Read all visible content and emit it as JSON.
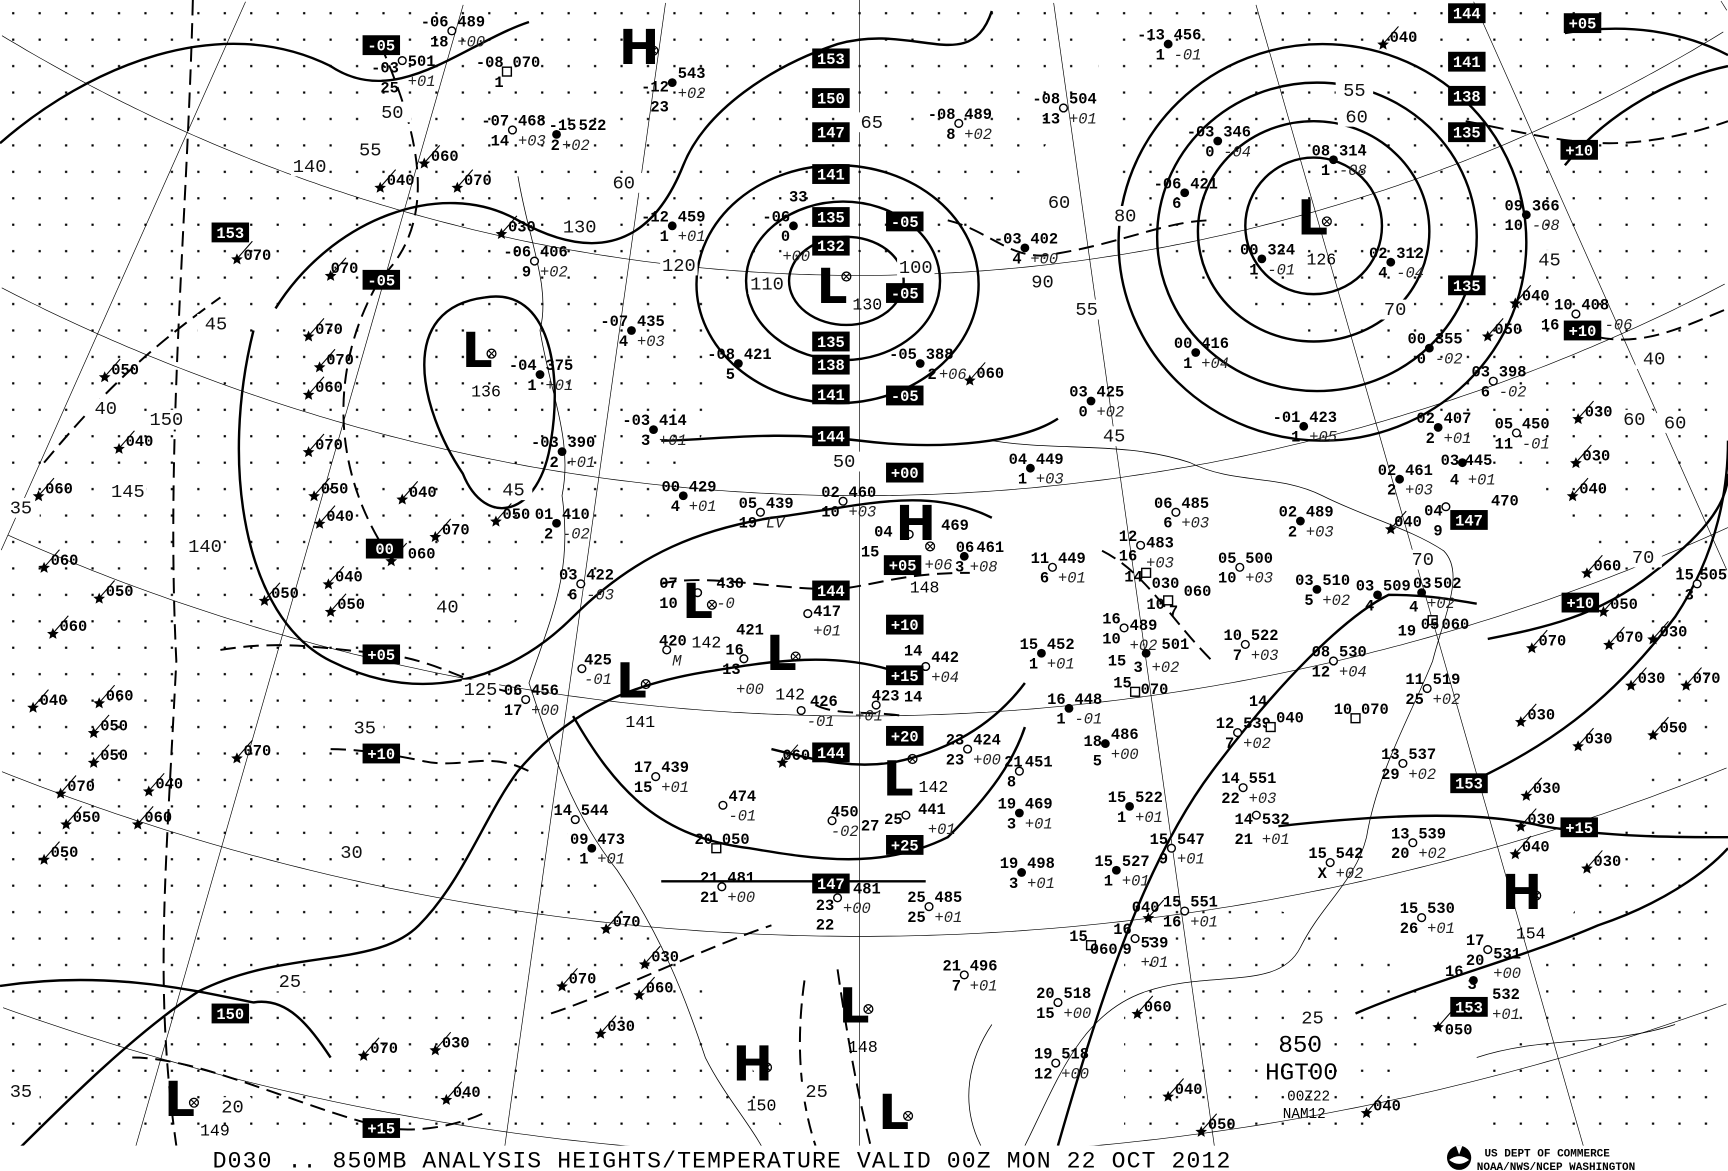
{
  "caption": "D030 .. 850MB   ANALYSIS  HEIGHTS/TEMPERATURE VALID 00Z MON 22 OCT 2012",
  "agency": {
    "line1": "US DEPT OF COMMERCE",
    "line2": "NOAA/NWS/NCEP WASHINGTON"
  },
  "legend_block": {
    "level": "850",
    "field": "HGT00",
    "time": "00Z22",
    "model": "NAM12"
  },
  "colors": {
    "ink": "#000000",
    "background": "#ffffff"
  },
  "stations": [
    {
      "t": "-06",
      "h": "489",
      "d": "18",
      "c": "+00",
      "m": "open"
    },
    {
      "t": "-03",
      "h": "501",
      "d": "25",
      "c": "+01",
      "m": "open"
    },
    {
      "t": "-08",
      "h": "070",
      "d": "1",
      "c": "",
      "m": "square"
    },
    {
      "t": "-12",
      "h": "543",
      "d": "23",
      "c": "+02",
      "m": "filled"
    },
    {
      "t": "-07",
      "h": "468",
      "d": "14",
      "c": "+03",
      "m": "open"
    },
    {
      "t": "-15",
      "h": "522",
      "d": "2",
      "c": "+02",
      "m": "filled"
    },
    {
      "t": "-12",
      "h": "459",
      "d": "1",
      "c": "+01",
      "m": "filled"
    },
    {
      "t": "-06",
      "h": "33",
      "d": "0",
      "c": "+00",
      "m": "filled"
    },
    {
      "t": "-06",
      "h": "406",
      "d": "9",
      "c": "+02",
      "m": "open"
    },
    {
      "t": "-07",
      "h": "435",
      "d": "4",
      "c": "+03",
      "m": "filled"
    },
    {
      "t": "-08",
      "h": "421",
      "d": "5",
      "c": "",
      "m": "filled"
    },
    {
      "t": "-04",
      "h": "375",
      "d": "1",
      "c": "+01",
      "m": "filled"
    },
    {
      "t": "-03",
      "h": "414",
      "d": "3",
      "c": "+01",
      "m": "filled"
    },
    {
      "t": "-03",
      "h": "390",
      "d": "2",
      "c": "+01",
      "m": "filled"
    },
    {
      "t": "00",
      "h": "429",
      "d": "4",
      "c": "+01",
      "m": "filled"
    },
    {
      "t": "01",
      "h": "410",
      "d": "2",
      "c": "-02",
      "m": "filled"
    },
    {
      "t": "05",
      "h": "439",
      "d": "19",
      "c": "LV",
      "m": "open"
    },
    {
      "t": "02",
      "h": "460",
      "d": "10",
      "c": "+03",
      "m": "open"
    },
    {
      "t": "-13",
      "h": "456",
      "d": "1",
      "c": "-01",
      "m": "filled"
    },
    {
      "t": "-08",
      "h": "504",
      "d": "13",
      "c": "+01",
      "m": "open"
    },
    {
      "t": "-08",
      "h": "489",
      "d": "8",
      "c": "+02",
      "m": "open"
    },
    {
      "t": "-03",
      "h": "346",
      "d": "0",
      "c": "-04",
      "m": "filled"
    },
    {
      "t": "08",
      "h": "314",
      "d": "1",
      "c": "-08",
      "m": "filled"
    },
    {
      "t": "-06",
      "h": "421",
      "d": "6",
      "c": "",
      "m": "filled"
    },
    {
      "t": "09",
      "h": "366",
      "d": "10",
      "c": "-08",
      "m": "filled"
    },
    {
      "t": "-03",
      "h": "402",
      "d": "4",
      "c": "+00",
      "m": "filled"
    },
    {
      "t": "00",
      "h": "324",
      "d": "1",
      "c": "-01",
      "m": "filled"
    },
    {
      "t": "02",
      "h": "312",
      "d": "4",
      "c": "-04",
      "m": "filled"
    },
    {
      "t": "10",
      "h": "408",
      "d": "16",
      "c": "-06",
      "m": "open"
    },
    {
      "t": "00",
      "h": "416",
      "d": "1",
      "c": "+04",
      "m": "filled"
    },
    {
      "t": "00",
      "h": "355",
      "d": "0",
      "c": "-02",
      "m": "filled"
    },
    {
      "t": "-05",
      "h": "388",
      "d": "2",
      "c": "+06",
      "m": "filled"
    },
    {
      "t": "03",
      "h": "398",
      "d": "6",
      "c": "-02",
      "m": "open"
    },
    {
      "t": "03",
      "h": "425",
      "d": "0",
      "c": "+02",
      "m": "filled"
    },
    {
      "t": "-01",
      "h": "423",
      "d": "1",
      "c": "+05",
      "m": "filled"
    },
    {
      "t": "02",
      "h": "407",
      "d": "2",
      "c": "+01",
      "m": "filled"
    },
    {
      "t": "05",
      "h": "450",
      "d": "11",
      "c": "-01",
      "m": "open"
    },
    {
      "t": "03",
      "h": "445",
      "d": "4",
      "c": "+01",
      "m": "filled"
    },
    {
      "t": "04",
      "h": "449",
      "d": "1",
      "c": "+03",
      "m": "filled"
    },
    {
      "t": "02",
      "h": "461",
      "d": "2",
      "c": "+03",
      "m": "filled"
    },
    {
      "t": "04",
      "h": "470",
      "d": "9",
      "c": "",
      "m": "open"
    },
    {
      "t": "06",
      "h": "485",
      "d": "6",
      "c": "+03",
      "m": "open"
    },
    {
      "t": "02",
      "h": "489",
      "d": "2",
      "c": "+03",
      "m": "filled"
    },
    {
      "t": "04",
      "h": "469",
      "d": "15",
      "c": "+06",
      "m": "open"
    },
    {
      "t": "12",
      "h": "483",
      "d": "16",
      "c": "+03",
      "m": "open"
    },
    {
      "t": "06",
      "h": "461",
      "d": "3",
      "c": "+08",
      "m": "filled"
    },
    {
      "t": "11",
      "h": "449",
      "d": "6",
      "c": "+01",
      "m": "open"
    },
    {
      "t": "05",
      "h": "500",
      "d": "10",
      "c": "+03",
      "m": "open"
    },
    {
      "t": "14",
      "h": "030",
      "d": "",
      "c": "",
      "m": "square"
    },
    {
      "t": "03",
      "h": "510",
      "d": "5",
      "c": "+02",
      "m": "filled"
    },
    {
      "t": "03",
      "h": "509",
      "d": "4",
      "c": "",
      "m": "filled"
    },
    {
      "t": "03",
      "h": "502",
      "d": "4",
      "c": "+02",
      "m": "filled"
    },
    {
      "t": "05",
      "h": "060",
      "d": "19",
      "c": "",
      "m": "square"
    },
    {
      "t": "10",
      "h": "060",
      "d": "7",
      "c": "",
      "m": "square"
    },
    {
      "t": "16",
      "h": "489",
      "d": "10",
      "c": "+02",
      "m": "open"
    },
    {
      "t": "15",
      "h": "452",
      "d": "1",
      "c": "+01",
      "m": "filled"
    },
    {
      "t": "15",
      "h": "501",
      "d": "3",
      "c": "+02",
      "m": "filled"
    },
    {
      "t": "10",
      "h": "522",
      "d": "7",
      "c": "+03",
      "m": "open"
    },
    {
      "t": "08",
      "h": "530",
      "d": "12",
      "c": "+04",
      "m": "open"
    },
    {
      "t": "11",
      "h": "519",
      "d": "25",
      "c": "+02",
      "m": "open"
    },
    {
      "t": "14",
      "h": "442",
      "d": "14",
      "c": "+04",
      "m": "open"
    },
    {
      "t": "15",
      "h": "070",
      "d": "",
      "c": "",
      "m": "square"
    },
    {
      "t": "16",
      "h": "448",
      "d": "1",
      "c": "-01",
      "m": "filled"
    },
    {
      "t": "",
      "h": "423",
      "d": "",
      "c": "+01",
      "m": "open"
    },
    {
      "t": "12",
      "h": "539",
      "d": "7",
      "c": "+02",
      "m": "open"
    },
    {
      "t": "14",
      "h": "040",
      "d": "",
      "c": "",
      "m": "square"
    },
    {
      "t": "10",
      "h": "070",
      "d": "",
      "c": "",
      "m": "square"
    },
    {
      "t": "18",
      "h": "486",
      "d": "5",
      "c": "+00",
      "m": "filled"
    },
    {
      "t": "23",
      "h": "424",
      "d": "23",
      "c": "+00",
      "m": "open"
    },
    {
      "t": "21",
      "h": "451",
      "d": "8",
      "c": "",
      "m": "open"
    },
    {
      "t": "13",
      "h": "537",
      "d": "29",
      "c": "+02",
      "m": "open"
    },
    {
      "t": "14",
      "h": "551",
      "d": "22",
      "c": "+03",
      "m": "open"
    },
    {
      "t": "15",
      "h": "522",
      "d": "1",
      "c": "+01",
      "m": "filled"
    },
    {
      "t": "19",
      "h": "469",
      "d": "3",
      "c": "+01",
      "m": "filled"
    },
    {
      "t": "25",
      "h": "441",
      "d": "27",
      "c": "+01",
      "m": "open"
    },
    {
      "t": "14",
      "h": "532",
      "d": "21",
      "c": "+01",
      "m": "open"
    },
    {
      "t": "13",
      "h": "539",
      "d": "20",
      "c": "+02",
      "m": "open"
    },
    {
      "t": "15",
      "h": "547",
      "d": "9",
      "c": "+01",
      "m": "open"
    },
    {
      "t": "15",
      "h": "542",
      "d": "X",
      "c": "+02",
      "m": "open"
    },
    {
      "t": "19",
      "h": "498",
      "d": "3",
      "c": "+01",
      "m": "filled"
    },
    {
      "t": "15",
      "h": "527",
      "d": "1",
      "c": "+01",
      "m": "filled"
    },
    {
      "t": "15",
      "h": "551",
      "d": "16",
      "c": "+01",
      "m": "open"
    },
    {
      "t": "25",
      "h": "485",
      "d": "25",
      "c": "+01",
      "m": "open"
    },
    {
      "t": "15",
      "h": "530",
      "d": "26",
      "c": "+01",
      "m": "open"
    },
    {
      "t": "16",
      "h": "539",
      "d": "9",
      "c": "+01",
      "m": "open"
    },
    {
      "t": "15",
      "h": "060",
      "d": "",
      "c": "",
      "m": "square"
    },
    {
      "t": "17",
      "h": "531",
      "d": "20",
      "c": "+00",
      "m": "open"
    },
    {
      "t": "21",
      "h": "496",
      "d": "7",
      "c": "+01",
      "m": "open"
    },
    {
      "t": "16",
      "h": "532",
      "d": "3",
      "c": "+01",
      "m": "filled"
    },
    {
      "t": "20",
      "h": "518",
      "d": "15",
      "c": "+00",
      "m": "open"
    },
    {
      "t": "19",
      "h": "518",
      "d": "12",
      "c": "+00",
      "m": "open"
    },
    {
      "t": "03",
      "h": "422",
      "d": "6",
      "c": "-03",
      "m": "open"
    },
    {
      "t": "07",
      "h": "430",
      "d": "10",
      "c": "-0",
      "m": "open"
    },
    {
      "t": "",
      "h": "417",
      "d": "",
      "c": "+01",
      "m": "open"
    },
    {
      "t": "",
      "h": "420",
      "d": "",
      "c": "M",
      "m": "open"
    },
    {
      "t": "",
      "h": "425",
      "d": "",
      "c": "-01",
      "m": "open"
    },
    {
      "t": "16",
      "h": "421",
      "d": "13",
      "c": "+00",
      "m": "open"
    },
    {
      "t": "",
      "h": "426",
      "d": "",
      "c": "-01",
      "m": "open"
    },
    {
      "t": "06",
      "h": "456",
      "d": "17",
      "c": "+00",
      "m": "open"
    },
    {
      "t": "17",
      "h": "439",
      "d": "15",
      "c": "+01",
      "m": "open"
    },
    {
      "t": "",
      "h": "474",
      "d": "",
      "c": "-01",
      "m": "open"
    },
    {
      "t": "",
      "h": "450",
      "d": "",
      "c": "-02",
      "m": "open"
    },
    {
      "t": "14",
      "h": "544",
      "d": "",
      "c": "",
      "m": "open"
    },
    {
      "t": "09",
      "h": "473",
      "d": "1",
      "c": "+01",
      "m": "filled"
    },
    {
      "t": "20",
      "h": "050",
      "d": "",
      "c": "",
      "m": "square"
    },
    {
      "t": "21",
      "h": "481",
      "d": "21",
      "c": "+00",
      "m": "open"
    },
    {
      "t": "23",
      "h": "481",
      "d": "22",
      "c": "+00",
      "m": "open"
    },
    {
      "t": "15",
      "h": "505",
      "d": "3",
      "c": "",
      "m": "open"
    }
  ],
  "wind_stations": [
    "060",
    "040",
    "070",
    "070",
    "030",
    "070",
    "070",
    "070",
    "050",
    "060",
    "040",
    "070",
    "060",
    "050",
    "040",
    "040",
    "050",
    "070",
    "060",
    "060",
    "050",
    "050",
    "040",
    "050",
    "060",
    "040",
    "060",
    "050",
    "050",
    "070",
    "070",
    "040",
    "050",
    "060",
    "050",
    "070",
    "030",
    "060",
    "070",
    "030",
    "030",
    "070",
    "040",
    "060",
    "060",
    "040",
    "040",
    "050",
    "030",
    "030",
    "040",
    "040",
    "060",
    "050",
    "070",
    "070",
    "030",
    "030",
    "070",
    "030",
    "050",
    "030",
    "030",
    "030",
    "040",
    "030",
    "040",
    "060",
    "040",
    "050",
    "040",
    "050"
  ],
  "boxed_labels": [
    "-05",
    "153",
    "-05",
    "00",
    "+05",
    "+10",
    "150",
    "+15",
    "153",
    "150",
    "147",
    "141",
    "135",
    "132",
    "135",
    "138",
    "141",
    "144",
    "-05",
    "-05",
    "-05",
    "+00",
    "+05",
    "+10",
    "+15",
    "+20",
    "+25",
    "144",
    "144",
    "147",
    "144",
    "141",
    "138",
    "135",
    "135",
    "+05",
    "+10",
    "+10",
    "147",
    "+10",
    "153",
    "+15",
    "153"
  ],
  "centers": [
    {
      "type": "H",
      "value": ""
    },
    {
      "type": "L",
      "value": "136"
    },
    {
      "type": "L",
      "value": "130"
    },
    {
      "type": "L",
      "value": "126"
    },
    {
      "type": "L",
      "value": "141"
    },
    {
      "type": "L",
      "value": "142"
    },
    {
      "type": "L",
      "value": "142"
    },
    {
      "type": "H",
      "value": "148"
    },
    {
      "type": "L",
      "value": "142"
    },
    {
      "type": "H",
      "value": "154"
    },
    {
      "type": "L",
      "value": "148"
    },
    {
      "type": "H",
      "value": "150"
    },
    {
      "type": "L",
      "value": "149"
    },
    {
      "type": "L",
      "value": ""
    }
  ],
  "contour_labels": [
    "150",
    "145",
    "140",
    "140",
    "130",
    "120",
    "110",
    "100",
    "90",
    "125",
    "45",
    "50",
    "55",
    "60",
    "65",
    "60",
    "55",
    "50",
    "45",
    "45",
    "40",
    "40",
    "35",
    "35",
    "30",
    "25",
    "25",
    "20",
    "25",
    "35",
    "80",
    "70",
    "60",
    "55",
    "45",
    "40",
    "60",
    "70",
    "70",
    "60"
  ]
}
